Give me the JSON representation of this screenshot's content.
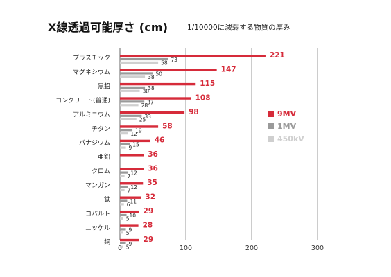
{
  "title": "X線透過可能厚さ (cm)",
  "subtitle": "1/10000に減弱する物質の厚み",
  "chart_data": {
    "type": "bar",
    "orientation": "horizontal",
    "categories": [
      "プラスチック",
      "マグネシウム",
      "黒鉛",
      "コンクリート(普通)",
      "アルミニウム",
      "チタン",
      "バナジウム",
      "亜鉛",
      "クロム",
      "マンガン",
      "鉄",
      "コバルト",
      "ニッケル",
      "銅"
    ],
    "series": [
      {
        "name": "9MV",
        "color": "#d62b3a",
        "values": [
          221,
          147,
          115,
          108,
          98,
          58,
          46,
          36,
          36,
          35,
          32,
          29,
          28,
          29
        ]
      },
      {
        "name": "1MV",
        "color": "#9a9a9a",
        "values": [
          73,
          50,
          38,
          37,
          33,
          19,
          15,
          null,
          12,
          12,
          11,
          10,
          9,
          9
        ]
      },
      {
        "name": "450kV",
        "color": "#cfcfcf",
        "values": [
          58,
          38,
          30,
          28,
          25,
          12,
          9,
          null,
          7,
          7,
          6,
          5,
          5,
          5
        ]
      }
    ],
    "value_labels": [
      {
        "9MV": "221",
        "1MV": "73",
        "450kV": "58"
      },
      {
        "9MV": "147",
        "1MV": "50",
        "450kV": "38"
      },
      {
        "9MV": "115",
        "1MV": "38",
        "450kV": "30"
      },
      {
        "9MV": "108",
        "1MV": "37",
        "450kV": "28"
      },
      {
        "9MV": "98",
        "1MV": "33",
        "450kV": "25"
      },
      {
        "9MV": "58",
        "1MV": "19",
        "450kV": "12"
      },
      {
        "9MV": "46",
        "1MV": "15",
        "450kV": "9"
      },
      {
        "9MV": "36",
        "1MV": "",
        "450kV": ""
      },
      {
        "9MV": "36",
        "1MV": "12",
        "450kV": "7"
      },
      {
        "9MV": "35",
        "1MV": "12",
        "450kV": "7"
      },
      {
        "9MV": "32",
        "1MV": "11",
        "450kV": "6"
      },
      {
        "9MV": "29",
        "1MV": "10",
        "450kV": "5"
      },
      {
        "9MV": "28",
        "1MV": "9",
        "450kV": "5"
      },
      {
        "9MV": "29",
        "1MV": "9",
        "450kV": "5"
      }
    ],
    "xlim": [
      0,
      300
    ],
    "xticks": [
      "0",
      "100",
      "200",
      "300"
    ],
    "grid": "vertical",
    "legend_position": "right"
  }
}
